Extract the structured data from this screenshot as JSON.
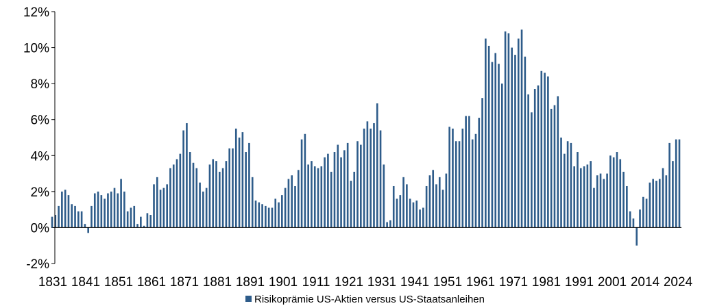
{
  "chart_data": {
    "type": "bar",
    "series_name": "Risikoprämie US-Aktien versus US-Staatsanleihen",
    "bar_color": "#2E5C8A",
    "y_unit": "%",
    "ylim": [
      -2,
      12
    ],
    "yticks": [
      -2,
      0,
      2,
      4,
      6,
      8,
      10,
      12
    ],
    "ytick_labels": [
      "-2%",
      "0%",
      "2%",
      "4%",
      "6%",
      "8%",
      "10%",
      "12%"
    ],
    "xtick_labels": [
      "1831",
      "1841",
      "1851",
      "1861",
      "1871",
      "1881",
      "1891",
      "1901",
      "1911",
      "1921",
      "1931",
      "1941",
      "1951",
      "1961",
      "1971",
      "1981",
      "1991",
      "2001",
      "2014",
      "2024"
    ],
    "grid": false,
    "legend_position": "bottom-center",
    "values": [
      0.6,
      0.7,
      1.2,
      2.0,
      2.1,
      1.8,
      1.3,
      1.2,
      0.9,
      0.9,
      0.2,
      -0.3,
      1.2,
      1.9,
      2.0,
      1.8,
      1.6,
      1.9,
      2.0,
      2.2,
      1.9,
      2.7,
      2.0,
      0.9,
      1.1,
      1.2,
      0.2,
      0.6,
      0.1,
      0.8,
      0.7,
      2.4,
      2.8,
      2.1,
      2.2,
      2.4,
      3.3,
      3.5,
      3.8,
      4.1,
      5.4,
      5.8,
      4.2,
      3.6,
      3.3,
      2.5,
      2.0,
      2.2,
      3.5,
      3.8,
      3.7,
      3.1,
      3.3,
      3.7,
      4.4,
      4.4,
      5.5,
      5.0,
      5.3,
      4.2,
      4.7,
      2.8,
      1.5,
      1.4,
      1.3,
      1.2,
      1.1,
      1.1,
      1.6,
      1.4,
      1.8,
      2.2,
      2.7,
      2.9,
      2.3,
      3.2,
      4.9,
      5.2,
      3.5,
      3.7,
      3.4,
      3.3,
      3.4,
      3.9,
      4.1,
      3.1,
      4.2,
      4.6,
      3.9,
      4.3,
      4.7,
      2.6,
      3.1,
      4.8,
      4.6,
      5.5,
      5.9,
      5.5,
      5.8,
      6.9,
      5.4,
      3.5,
      0.3,
      0.4,
      2.3,
      1.6,
      1.8,
      2.8,
      2.4,
      1.6,
      1.4,
      1.5,
      1.0,
      1.1,
      2.3,
      2.9,
      3.2,
      2.4,
      2.8,
      2.1,
      3.0,
      5.6,
      5.5,
      4.8,
      4.8,
      5.5,
      6.2,
      6.2,
      4.9,
      5.2,
      6.1,
      7.2,
      10.5,
      10.1,
      9.2,
      9.7,
      9.1,
      8.0,
      10.9,
      10.8,
      10.0,
      9.6,
      10.5,
      11.0,
      9.5,
      7.4,
      6.4,
      7.7,
      7.9,
      8.7,
      8.6,
      8.4,
      6.6,
      6.8,
      7.3,
      5.0,
      4.1,
      4.8,
      4.7,
      3.4,
      4.2,
      3.3,
      3.4,
      3.5,
      3.7,
      2.2,
      2.9,
      3.0,
      2.7,
      3.0,
      4.0,
      3.9,
      4.2,
      3.8,
      3.1,
      2.3,
      0.9,
      0.5,
      -1.0,
      1.0,
      1.7,
      1.6,
      2.5,
      2.7,
      2.6,
      2.7,
      3.3,
      2.9,
      4.7,
      3.7,
      4.9,
      4.9
    ]
  }
}
